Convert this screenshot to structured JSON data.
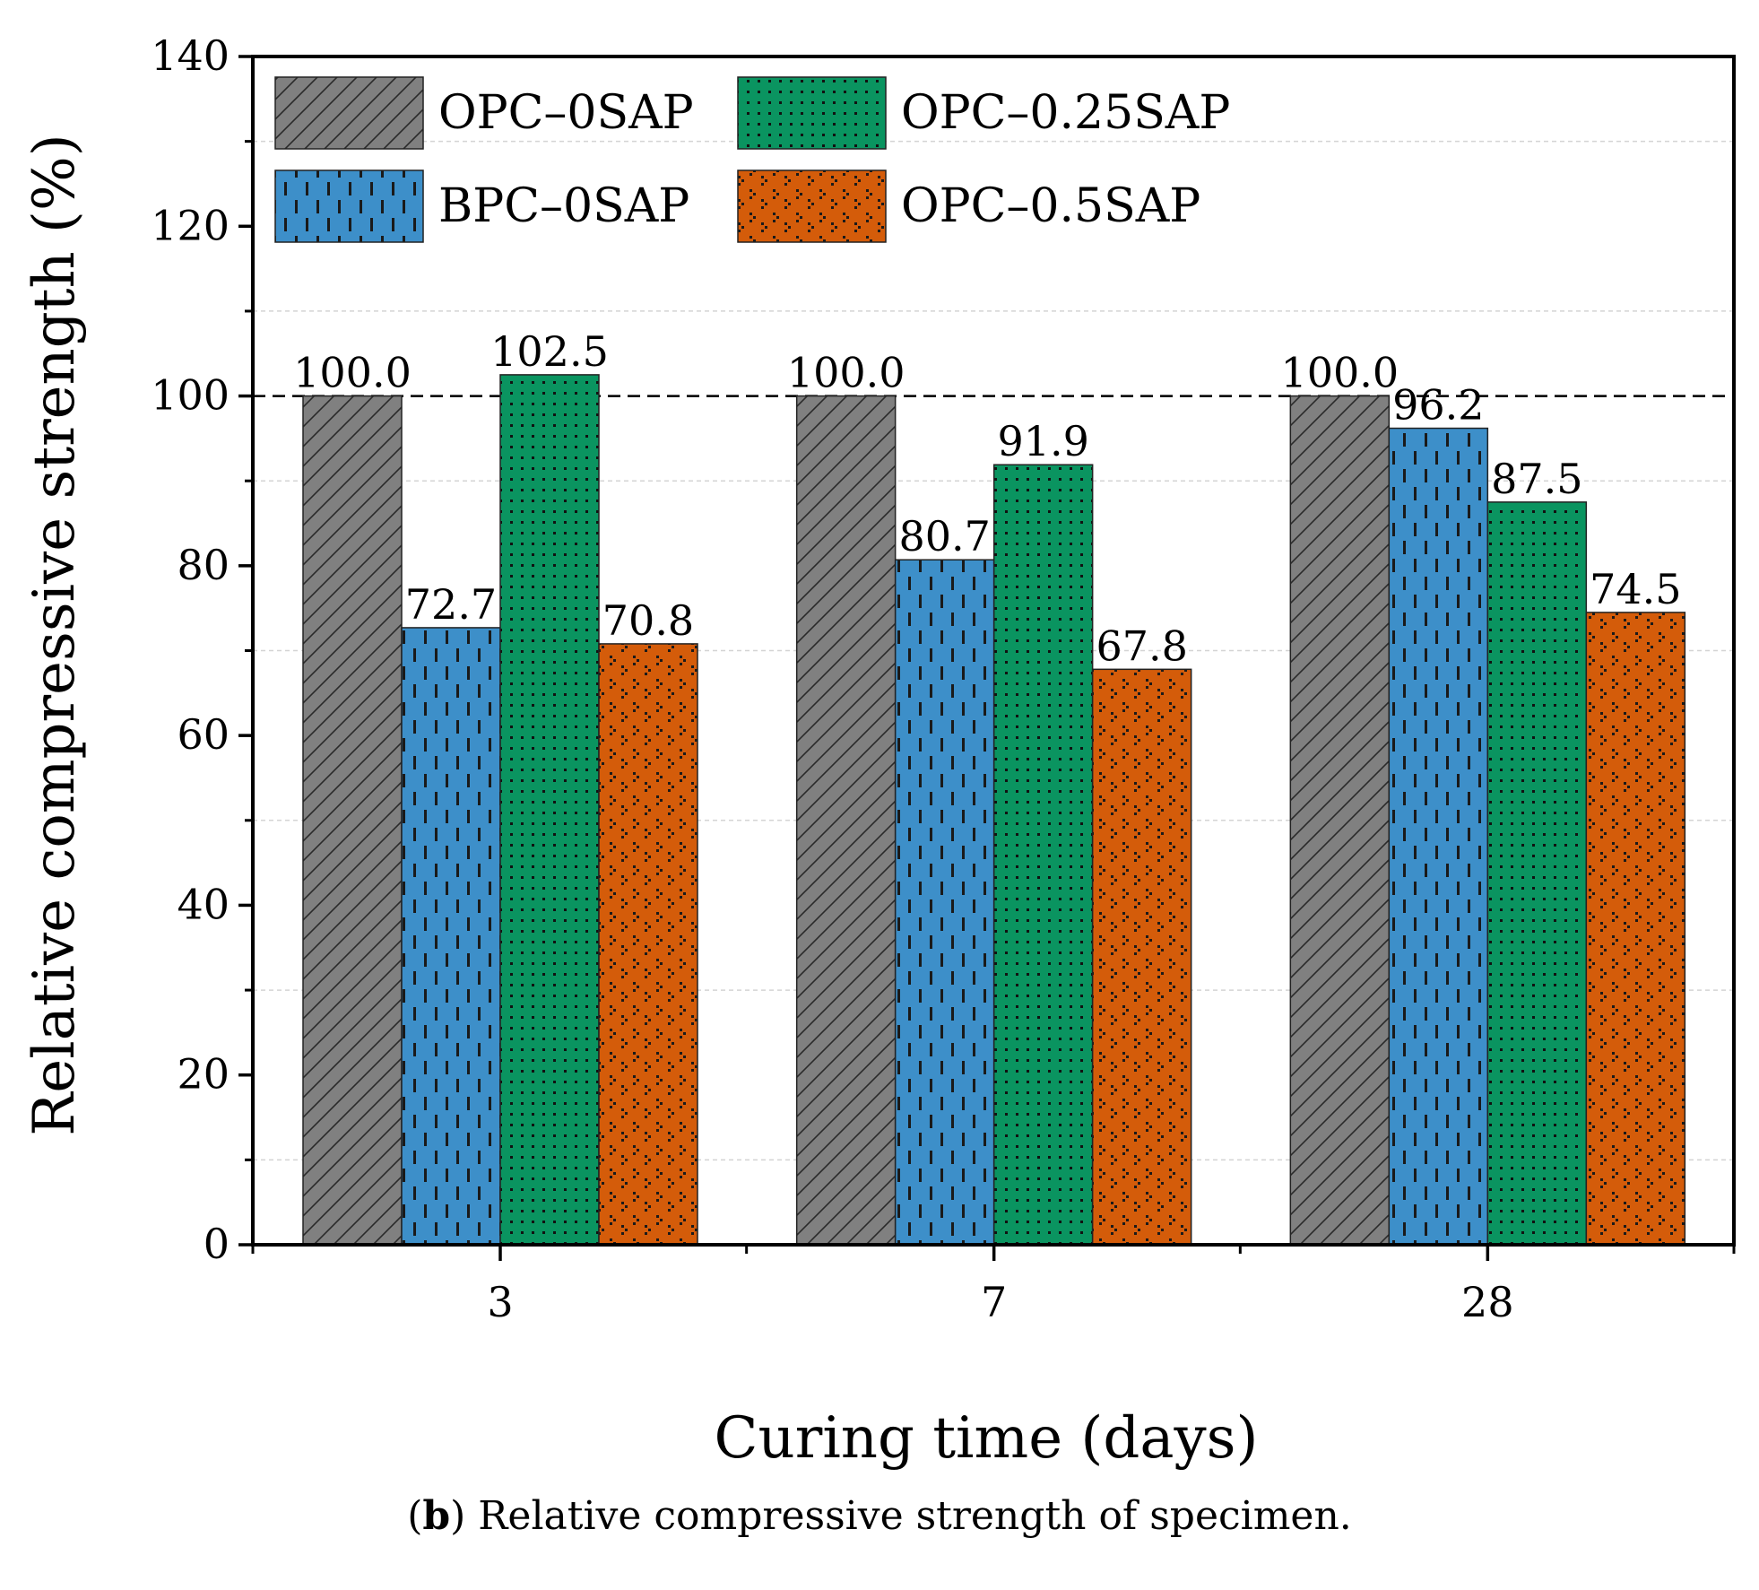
{
  "chart_data": {
    "type": "bar",
    "title": "",
    "xlabel": "Curing time (days)",
    "ylabel": "Relative compressive strength (%)",
    "ylim": [
      0,
      140
    ],
    "yticks": [
      0,
      20,
      40,
      60,
      80,
      100,
      120,
      140
    ],
    "categories": [
      "3",
      "7",
      "28"
    ],
    "reference_line": 100,
    "legend_position": "top-left",
    "series": [
      {
        "name": "OPC–0SAP",
        "values": [
          100.0,
          100.0,
          100.0
        ],
        "labels": [
          "100.0",
          "100.0",
          "100.0"
        ],
        "color": "#808080",
        "pattern": "hatch"
      },
      {
        "name": "BPC–0SAP",
        "values": [
          72.7,
          80.7,
          96.2
        ],
        "labels": [
          "72.7",
          "80.7",
          "96.2"
        ],
        "color": "#3d8fc9",
        "pattern": "dashes"
      },
      {
        "name": "OPC–0.25SAP",
        "values": [
          102.5,
          91.9,
          87.5
        ],
        "labels": [
          "102.5",
          "91.9",
          "87.5"
        ],
        "color": "#0a9460",
        "pattern": "dots"
      },
      {
        "name": "OPC–0.5SAP",
        "values": [
          70.8,
          67.8,
          74.5
        ],
        "labels": [
          "70.8",
          "67.8",
          "74.5"
        ],
        "color": "#d45c0a",
        "pattern": "triplets"
      }
    ]
  },
  "caption": {
    "letter": "b",
    "text": " Relative compressive strength of specimen."
  }
}
